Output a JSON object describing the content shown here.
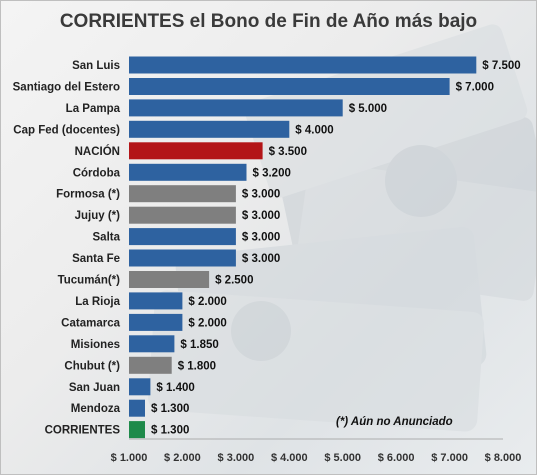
{
  "colors": {
    "default": "#2e62a0",
    "highlight": "#b31518",
    "pending": "#7f7f7f",
    "target": "#1e8a4a"
  },
  "chart_data": {
    "type": "bar",
    "orientation": "horizontal",
    "title": "CORRIENTES el Bono de Fin de Año más bajo",
    "categories": [
      "San Luis",
      "Santiago del Estero",
      "La Pampa",
      "Cap Fed (docentes)",
      "NACIÓN",
      "Córdoba",
      "Formosa (*)",
      "Jujuy (*)",
      "Salta",
      "Santa Fe",
      "Tucumán(*)",
      "La Rioja",
      "Catamarca",
      "Misiones",
      "Chubut (*)",
      "San Juan",
      "Mendoza",
      "CORRIENTES"
    ],
    "values": [
      7500,
      7000,
      5000,
      4000,
      3500,
      3200,
      3000,
      3000,
      3000,
      3000,
      2500,
      2000,
      2000,
      1850,
      1800,
      1400,
      1300,
      1300
    ],
    "value_labels": [
      "$ 7.500",
      "$ 7.000",
      "$ 5.000",
      "$ 4.000",
      "$ 3.500",
      "$ 3.200",
      "$ 3.000",
      "$ 3.000",
      "$ 3.000",
      "$ 3.000",
      "$ 2.500",
      "$ 2.000",
      "$ 2.000",
      "$ 1.850",
      "$ 1.800",
      "$ 1.400",
      "$ 1.300",
      "$ 1.300"
    ],
    "bar_color_keys": [
      "default",
      "default",
      "default",
      "default",
      "highlight",
      "default",
      "pending",
      "pending",
      "default",
      "default",
      "pending",
      "default",
      "default",
      "default",
      "pending",
      "default",
      "default",
      "target"
    ],
    "xlim": [
      1000,
      8000
    ],
    "xticks": [
      1000,
      2000,
      3000,
      4000,
      5000,
      6000,
      7000,
      8000
    ],
    "xtick_labels": [
      "$ 1.000",
      "$ 2.000",
      "$ 3.000",
      "$ 4.000",
      "$ 5.000",
      "$ 6.000",
      "$ 7.000",
      "$ 8.000"
    ],
    "grid": false,
    "annotation": "(*) Aún no Anunciado"
  }
}
